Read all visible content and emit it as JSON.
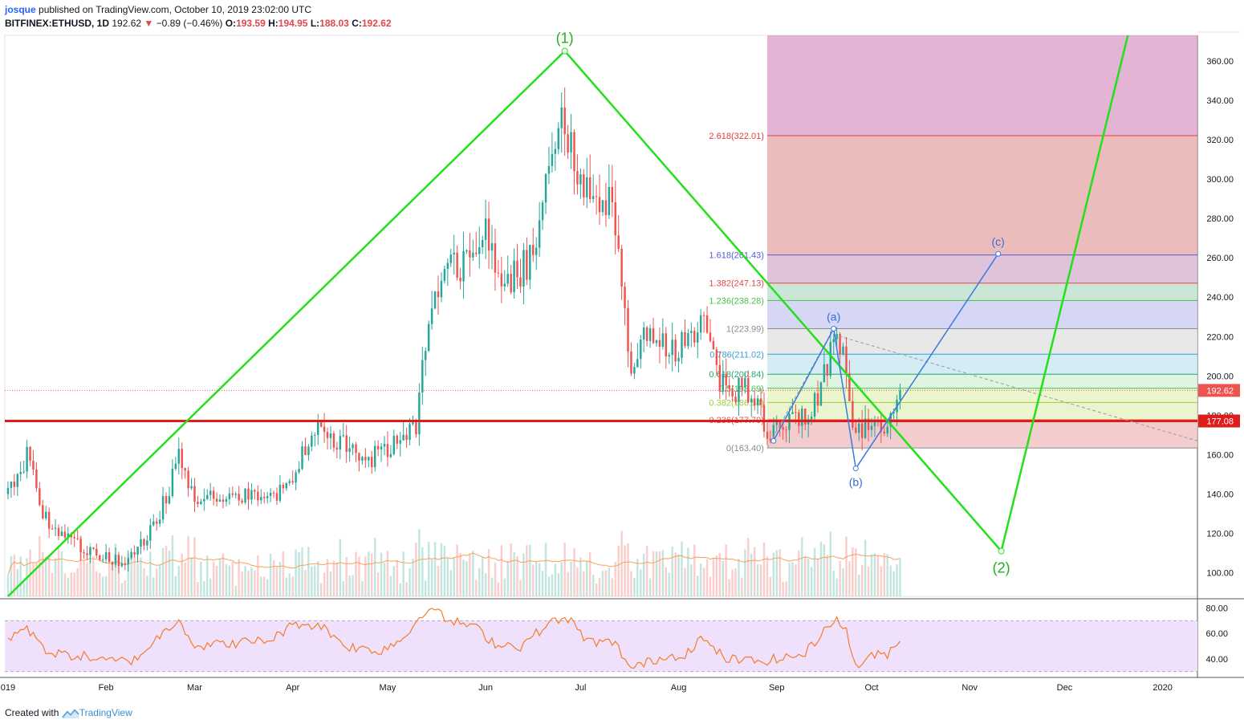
{
  "header": {
    "user": "josque",
    "published": "published on TradingView.com, October 10, 2019 23:02:00 UTC",
    "symbol": "BITFINEX:ETHUSD, 1D",
    "last": "192.62",
    "change_arrow": "▼",
    "change": "−0.89 (−0.46%)",
    "o_label": "O:",
    "o": "193.59",
    "h_label": "H:",
    "h": "194.95",
    "l_label": "L:",
    "l": "188.03",
    "c_label": "C:",
    "c": "192.62"
  },
  "footer": {
    "created": "Created with",
    "brand": "TradingView"
  },
  "colors": {
    "wave": "#22e11a",
    "abc": "#3a7ae0",
    "support": "#e01b1b",
    "up": "#26a69a",
    "down": "#ef5350",
    "rsi": "#f57c2a",
    "rsi_bg": "#efe0fb",
    "price_tag": "#ef5350"
  },
  "chart_data": {
    "type": "candlestick",
    "symbol": "BITFINEX:ETHUSD",
    "interval": "1D",
    "yaxis": {
      "ticks": [
        100,
        120,
        140,
        160,
        180,
        200,
        220,
        240,
        260,
        280,
        300,
        320,
        340,
        360
      ],
      "range": [
        88,
        373
      ]
    },
    "xaxis": {
      "labels": [
        {
          "label": "019",
          "date": "2019-01-01"
        },
        {
          "label": "Feb",
          "date": "2019-02-01"
        },
        {
          "label": "Mar",
          "date": "2019-03-01"
        },
        {
          "label": "Apr",
          "date": "2019-04-01"
        },
        {
          "label": "May",
          "date": "2019-05-01"
        },
        {
          "label": "Jun",
          "date": "2019-06-01"
        },
        {
          "label": "Jul",
          "date": "2019-07-01"
        },
        {
          "label": "Aug",
          "date": "2019-08-01"
        },
        {
          "label": "Sep",
          "date": "2019-09-01"
        },
        {
          "label": "Oct",
          "date": "2019-10-01"
        },
        {
          "label": "Nov",
          "date": "2019-11-01"
        },
        {
          "label": "Dec",
          "date": "2019-12-01"
        },
        {
          "label": "2020",
          "date": "2020-01-01"
        }
      ],
      "range": [
        "2018-12-31",
        "2020-01-12"
      ]
    },
    "price_key": [
      [
        "2019-01-01",
        140
      ],
      [
        "2019-01-07",
        160
      ],
      [
        "2019-01-09",
        155
      ],
      [
        "2019-01-12",
        128
      ],
      [
        "2019-01-20",
        118
      ],
      [
        "2019-02-01",
        107
      ],
      [
        "2019-02-08",
        106
      ],
      [
        "2019-02-17",
        125
      ],
      [
        "2019-02-24",
        158
      ],
      [
        "2019-03-01",
        137
      ],
      [
        "2019-03-10",
        138
      ],
      [
        "2019-03-20",
        140
      ],
      [
        "2019-04-01",
        142
      ],
      [
        "2019-04-06",
        170
      ],
      [
        "2019-04-10",
        177
      ],
      [
        "2019-04-16",
        165
      ],
      [
        "2019-04-26",
        158
      ],
      [
        "2019-05-01",
        163
      ],
      [
        "2019-05-10",
        172
      ],
      [
        "2019-05-14",
        230
      ],
      [
        "2019-05-19",
        260
      ],
      [
        "2019-05-26",
        255
      ],
      [
        "2019-06-01",
        272
      ],
      [
        "2019-06-07",
        248
      ],
      [
        "2019-06-15",
        258
      ],
      [
        "2019-06-22",
        310
      ],
      [
        "2019-06-26",
        330
      ],
      [
        "2019-06-29",
        305
      ],
      [
        "2019-07-04",
        296
      ],
      [
        "2019-07-11",
        290
      ],
      [
        "2019-07-17",
        200
      ],
      [
        "2019-07-22",
        222
      ],
      [
        "2019-07-29",
        212
      ],
      [
        "2019-08-05",
        222
      ],
      [
        "2019-08-09",
        224
      ],
      [
        "2019-08-14",
        195
      ],
      [
        "2019-08-20",
        193
      ],
      [
        "2019-08-24",
        192
      ],
      [
        "2019-08-29",
        172
      ],
      [
        "2019-09-04",
        176
      ],
      [
        "2019-09-12",
        180
      ],
      [
        "2019-09-19",
        218
      ],
      [
        "2019-09-22",
        212
      ],
      [
        "2019-09-25",
        169
      ],
      [
        "2019-09-30",
        177
      ],
      [
        "2019-10-05",
        176
      ],
      [
        "2019-10-10",
        192.62
      ]
    ],
    "last_price": 192.62,
    "support_level": 177.08,
    "elliott": {
      "waves": [
        {
          "label": "(1)",
          "date": "2019-06-26",
          "price": 365
        },
        {
          "label": "(2)",
          "date": "2019-11-11",
          "price": 111
        }
      ],
      "start": {
        "date": "2019-01-01",
        "price": 88
      },
      "next": {
        "date": "2019-12-21",
        "price": 373
      }
    },
    "abc": [
      {
        "label": "",
        "date": "2019-08-31",
        "price": 167
      },
      {
        "label": "(a)",
        "date": "2019-09-19",
        "price": 223.99
      },
      {
        "label": "(b)",
        "date": "2019-09-26",
        "price": 153
      },
      {
        "label": "(c)",
        "date": "2019-11-10",
        "price": 262
      }
    ],
    "fibonacci": {
      "start_date": "2019-08-29",
      "levels": [
        {
          "ratio": "0",
          "price": 163.4,
          "label": "0(163.40)"
        },
        {
          "ratio": "0.236",
          "price": 177.7,
          "label": "0.236(177.70)"
        },
        {
          "ratio": "0.382",
          "price": 186.54,
          "label": "0.382(186.54)"
        },
        {
          "ratio": "0.5",
          "price": 193.69,
          "label": "0.5(193.69)"
        },
        {
          "ratio": "0.618",
          "price": 200.84,
          "label": "0.618(200.84)"
        },
        {
          "ratio": "0.786",
          "price": 211.02,
          "label": "0.786(211.02)"
        },
        {
          "ratio": "1",
          "price": 223.99,
          "label": "1(223.99)"
        },
        {
          "ratio": "1.236",
          "price": 238.28,
          "label": "1.236(238.28)"
        },
        {
          "ratio": "1.382",
          "price": 247.13,
          "label": "1.382(247.13)"
        },
        {
          "ratio": "1.618",
          "price": 261.43,
          "label": "1.618(261.43)"
        },
        {
          "ratio": "2.618",
          "price": 322.01,
          "label": "2.618(322.01)"
        }
      ]
    },
    "rsi": {
      "ticks": [
        40,
        60,
        80
      ],
      "band": [
        30,
        70
      ],
      "range": [
        26,
        86
      ],
      "key": [
        [
          "2019-01-01",
          56
        ],
        [
          "2019-01-06",
          64
        ],
        [
          "2019-01-10",
          58
        ],
        [
          "2019-01-14",
          44
        ],
        [
          "2019-01-25",
          42
        ],
        [
          "2019-02-01",
          38
        ],
        [
          "2019-02-10",
          39
        ],
        [
          "2019-02-18",
          58
        ],
        [
          "2019-02-24",
          72
        ],
        [
          "2019-03-01",
          50
        ],
        [
          "2019-03-12",
          52
        ],
        [
          "2019-03-25",
          55
        ],
        [
          "2019-04-02",
          68
        ],
        [
          "2019-04-10",
          66
        ],
        [
          "2019-04-18",
          50
        ],
        [
          "2019-04-28",
          46
        ],
        [
          "2019-05-06",
          56
        ],
        [
          "2019-05-14",
          82
        ],
        [
          "2019-05-20",
          70
        ],
        [
          "2019-05-28",
          66
        ],
        [
          "2019-06-04",
          52
        ],
        [
          "2019-06-12",
          50
        ],
        [
          "2019-06-21",
          68
        ],
        [
          "2019-06-27",
          72
        ],
        [
          "2019-07-03",
          54
        ],
        [
          "2019-07-12",
          52
        ],
        [
          "2019-07-17",
          32
        ],
        [
          "2019-07-25",
          40
        ],
        [
          "2019-08-03",
          44
        ],
        [
          "2019-08-08",
          56
        ],
        [
          "2019-08-16",
          40
        ],
        [
          "2019-08-25",
          38
        ],
        [
          "2019-09-02",
          40
        ],
        [
          "2019-09-10",
          44
        ],
        [
          "2019-09-19",
          72
        ],
        [
          "2019-09-23",
          62
        ],
        [
          "2019-09-26",
          34
        ],
        [
          "2019-10-01",
          42
        ],
        [
          "2019-10-06",
          44
        ],
        [
          "2019-10-10",
          56
        ]
      ]
    }
  }
}
